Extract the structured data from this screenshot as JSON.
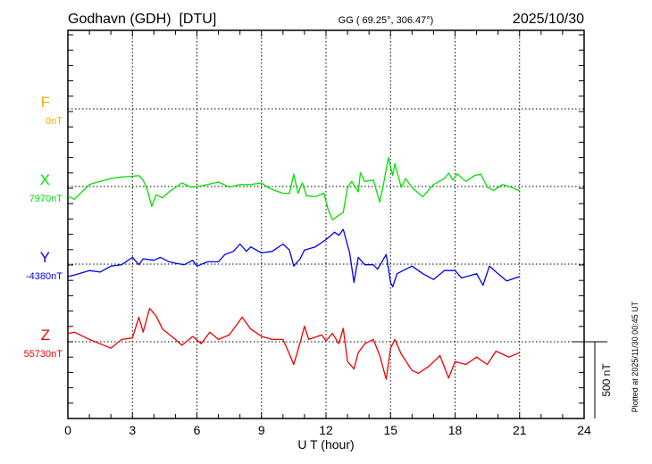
{
  "header": {
    "station": "Godhavn (GDH)  [DTU]",
    "coords": "GG ( 69.25°, 306.47°)",
    "date": "2025/10/30"
  },
  "footer": {
    "plotted": "Plotted at 2025/11/30 00:45 UT",
    "scale_label": "500 nT"
  },
  "chart_data": {
    "type": "line",
    "xlabel": "U T (hour)",
    "xlim": [
      0,
      24
    ],
    "xticks": [
      "0",
      "3",
      "6",
      "9",
      "12",
      "15",
      "18",
      "21",
      "24"
    ],
    "scale_nT": 500,
    "y_tick_step_nT": 100,
    "series": [
      {
        "name": "F",
        "baseline_label": "0nT",
        "color": "#f5a800",
        "points": []
      },
      {
        "name": "X",
        "baseline_label": "7970nT",
        "color": "#00e000",
        "points": [
          [
            0,
            -63
          ],
          [
            0.3,
            -83
          ],
          [
            1,
            13
          ],
          [
            1.5,
            33
          ],
          [
            2,
            52
          ],
          [
            2.5,
            62
          ],
          [
            3,
            67
          ],
          [
            3.3,
            71
          ],
          [
            3.5,
            42
          ],
          [
            3.7,
            -25
          ],
          [
            3.9,
            -130
          ],
          [
            4.1,
            -54
          ],
          [
            4.4,
            -73
          ],
          [
            4.7,
            -35
          ],
          [
            5,
            -6
          ],
          [
            5.3,
            23
          ],
          [
            5.7,
            -4
          ],
          [
            6,
            -2
          ],
          [
            6.5,
            13
          ],
          [
            7,
            29
          ],
          [
            7.5,
            -4
          ],
          [
            8,
            13
          ],
          [
            8.5,
            13
          ],
          [
            9,
            23
          ],
          [
            9.3,
            -6
          ],
          [
            9.6,
            -25
          ],
          [
            10,
            -44
          ],
          [
            10.3,
            -44
          ],
          [
            10.5,
            81
          ],
          [
            10.7,
            -44
          ],
          [
            10.9,
            23
          ],
          [
            11.1,
            -60
          ],
          [
            11.5,
            -67
          ],
          [
            11.9,
            -44
          ],
          [
            12.1,
            -150
          ],
          [
            12.3,
            -217
          ],
          [
            12.6,
            -188
          ],
          [
            12.8,
            -169
          ],
          [
            13,
            -6
          ],
          [
            13.2,
            33
          ],
          [
            13.5,
            -35
          ],
          [
            13.6,
            90
          ],
          [
            13.8,
            33
          ],
          [
            14.2,
            42
          ],
          [
            14.5,
            -102
          ],
          [
            14.7,
            33
          ],
          [
            14.9,
            187
          ],
          [
            15.1,
            71
          ],
          [
            15.2,
            148
          ],
          [
            15.5,
            -6
          ],
          [
            15.7,
            52
          ],
          [
            16,
            -6
          ],
          [
            16.3,
            -44
          ],
          [
            16.5,
            -67
          ],
          [
            17,
            13
          ],
          [
            17.5,
            52
          ],
          [
            17.7,
            87
          ],
          [
            17.9,
            42
          ],
          [
            18.1,
            83
          ],
          [
            18.5,
            33
          ],
          [
            18.9,
            71
          ],
          [
            19.2,
            81
          ],
          [
            19.5,
            -6
          ],
          [
            19.8,
            -25
          ],
          [
            20.2,
            13
          ],
          [
            20.6,
            -4
          ],
          [
            21,
            -29
          ]
        ]
      },
      {
        "name": "Y",
        "baseline_label": "-4380nT",
        "color": "#0000ee",
        "points": [
          [
            0,
            -81
          ],
          [
            0.3,
            -71
          ],
          [
            1,
            -42
          ],
          [
            1.5,
            -52
          ],
          [
            2,
            -13
          ],
          [
            2.5,
            -4
          ],
          [
            3,
            44
          ],
          [
            3.3,
            -4
          ],
          [
            3.5,
            35
          ],
          [
            4,
            25
          ],
          [
            4.3,
            44
          ],
          [
            4.7,
            15
          ],
          [
            5,
            6
          ],
          [
            5.4,
            -4
          ],
          [
            5.8,
            25
          ],
          [
            6,
            -13
          ],
          [
            6.5,
            15
          ],
          [
            7,
            15
          ],
          [
            7.3,
            63
          ],
          [
            7.7,
            83
          ],
          [
            8,
            131
          ],
          [
            8.3,
            83
          ],
          [
            8.5,
            112
          ],
          [
            9,
            73
          ],
          [
            9.5,
            83
          ],
          [
            10,
            131
          ],
          [
            10.3,
            92
          ],
          [
            10.5,
            -13
          ],
          [
            10.8,
            35
          ],
          [
            11,
            92
          ],
          [
            11.5,
            112
          ],
          [
            12,
            160
          ],
          [
            12.4,
            208
          ],
          [
            12.6,
            188
          ],
          [
            12.8,
            227
          ],
          [
            13.1,
            73
          ],
          [
            13.3,
            -119
          ],
          [
            13.5,
            44
          ],
          [
            13.8,
            -4
          ],
          [
            14.2,
            -4
          ],
          [
            14.4,
            -33
          ],
          [
            14.8,
            63
          ],
          [
            15,
            -119
          ],
          [
            15.1,
            -148
          ],
          [
            15.3,
            -62
          ],
          [
            16,
            -13
          ],
          [
            16.5,
            -62
          ],
          [
            17,
            -100
          ],
          [
            17.5,
            -42
          ],
          [
            18,
            -42
          ],
          [
            18.3,
            -90
          ],
          [
            19,
            -62
          ],
          [
            19.3,
            -138
          ],
          [
            19.6,
            -13
          ],
          [
            20,
            -62
          ],
          [
            20.4,
            -110
          ],
          [
            21,
            -81
          ]
        ]
      },
      {
        "name": "Z",
        "baseline_label": "55730nT",
        "color": "#ee0000",
        "points": [
          [
            0,
            54
          ],
          [
            0.3,
            63
          ],
          [
            1,
            15
          ],
          [
            2,
            -42
          ],
          [
            2.5,
            15
          ],
          [
            3,
            25
          ],
          [
            3.3,
            160
          ],
          [
            3.5,
            63
          ],
          [
            3.8,
            217
          ],
          [
            4.1,
            169
          ],
          [
            4.4,
            83
          ],
          [
            5,
            15
          ],
          [
            5.3,
            -23
          ],
          [
            5.8,
            35
          ],
          [
            6.2,
            -13
          ],
          [
            6.6,
            63
          ],
          [
            7,
            15
          ],
          [
            7.5,
            44
          ],
          [
            7.8,
            102
          ],
          [
            8.1,
            160
          ],
          [
            8.5,
            83
          ],
          [
            9,
            35
          ],
          [
            9.5,
            15
          ],
          [
            10,
            15
          ],
          [
            10.3,
            -81
          ],
          [
            10.5,
            -148
          ],
          [
            10.8,
            -4
          ],
          [
            11,
            102
          ],
          [
            11.2,
            15
          ],
          [
            11.8,
            44
          ],
          [
            12,
            6
          ],
          [
            12.3,
            54
          ],
          [
            12.6,
            -13
          ],
          [
            12.8,
            88
          ],
          [
            13,
            -129
          ],
          [
            13.3,
            -177
          ],
          [
            13.5,
            -71
          ],
          [
            13.8,
            -13
          ],
          [
            14.2,
            15
          ],
          [
            14.5,
            -90
          ],
          [
            14.8,
            -244
          ],
          [
            15,
            -42
          ],
          [
            15.2,
            15
          ],
          [
            15.5,
            -81
          ],
          [
            16,
            -187
          ],
          [
            16.3,
            -206
          ],
          [
            16.8,
            -158
          ],
          [
            17.3,
            -90
          ],
          [
            17.7,
            -236
          ],
          [
            18,
            -129
          ],
          [
            18.5,
            -148
          ],
          [
            19,
            -100
          ],
          [
            19.5,
            -148
          ],
          [
            19.9,
            -61
          ],
          [
            20.5,
            -100
          ],
          [
            21,
            -71
          ]
        ]
      }
    ]
  }
}
